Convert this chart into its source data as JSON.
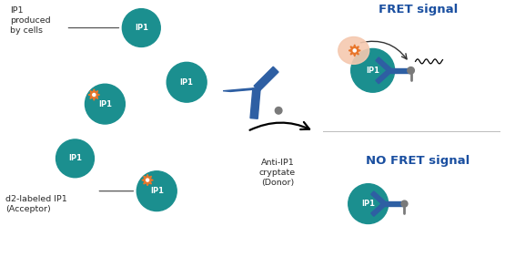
{
  "fig_width": 5.55,
  "fig_height": 2.82,
  "bg_color": "#ffffff",
  "teal": "#1b8f8f",
  "orange": "#e8762b",
  "blue_ab": "#2e5fa3",
  "gray": "#7a7a7a",
  "light_pink": "#f5c9b0",
  "text_dark": "#2a2a2a",
  "fret_blue": "#1a4fa0",
  "ip1_text": "IP1",
  "label_produced": "IP1\nproduced\nby cells",
  "label_d2": "d2-labeled IP1\n(Acceptor)",
  "label_anti": "Anti-IP1\ncryptate\n(Donor)",
  "label_fret": "FRET signal",
  "label_nofret": "NO FRET signal"
}
